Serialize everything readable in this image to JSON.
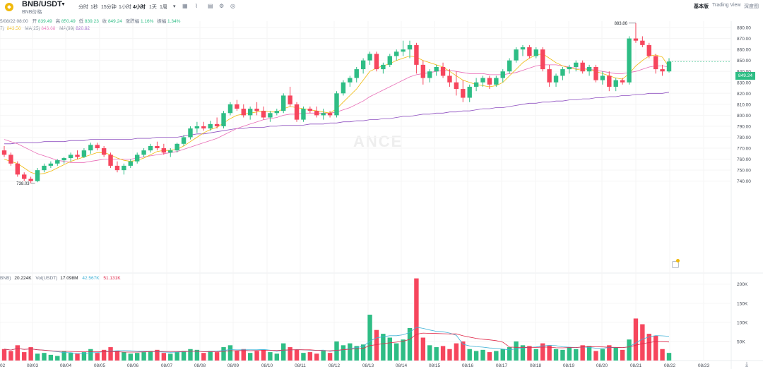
{
  "header": {
    "pair": "BNB/USDT",
    "sub_label": "BNB价格",
    "intervals": [
      "分时",
      "1秒",
      "15分钟",
      "1小时",
      "4小时",
      "1天",
      "1周"
    ],
    "active_interval": "4小时",
    "views": [
      "基本版",
      "Trading View",
      "深度图"
    ],
    "active_view": "基本版"
  },
  "ohlc_legend": {
    "date": "5/08/22 08:00",
    "open_label": "开",
    "open": "839.49",
    "high_label": "高",
    "high": "850.49",
    "low_label": "低",
    "low": "839.23",
    "close_label": "收",
    "close": "849.24",
    "change_label": "涨跌幅",
    "change": "1.16%",
    "amp_label": "振幅",
    "amp": "1.34%"
  },
  "ma_legend": {
    "prefix": "7)",
    "ma7_value": "843.56",
    "ma25_label": "MA(25)",
    "ma25_value": "843.68",
    "ma99_label": "MA(99)",
    "ma99_value": "820.82"
  },
  "vol_legend": {
    "prefix": "BNB)",
    "vol_bnb": "20.224K",
    "vol_usdt_label": "Vol(USDT)",
    "vol_usdt": "17.098M",
    "ma1": "42.567K",
    "ma2": "51.131K"
  },
  "watermark": "ANCE",
  "price_labels": {
    "current": "849.24",
    "high_marker": "883.86",
    "low_marker": "738.03"
  },
  "colors": {
    "up": "#2ebd85",
    "down": "#f6465d",
    "ma7": "#f0b90b",
    "ma25": "#e86ab5",
    "ma99": "#8e4fc0",
    "vol_ma1": "#3eb1d6",
    "vol_ma2": "#e0294a"
  },
  "chart_data": {
    "type": "candlestick",
    "price_axis_ticks": [
      880,
      870,
      860,
      850,
      840,
      830,
      820,
      810,
      800,
      790,
      780,
      770,
      760,
      750,
      740
    ],
    "volume_axis_ticks": [
      "200K",
      "150K",
      "100K",
      "50K"
    ],
    "x_ticks": [
      "02",
      "08/03",
      "08/04",
      "08/05",
      "08/06",
      "08/07",
      "08/08",
      "08/09",
      "08/10",
      "08/11",
      "08/12",
      "08/13",
      "08/14",
      "08/15",
      "08/16",
      "08/17",
      "08/18",
      "08/19",
      "08/20",
      "08/21",
      "08/22",
      "08/23"
    ],
    "candles": [
      [
        768,
        772,
        762,
        764
      ],
      [
        764,
        766,
        754,
        756
      ],
      [
        756,
        758,
        744,
        746
      ],
      [
        746,
        748,
        740,
        742
      ],
      [
        742,
        744,
        738,
        740
      ],
      [
        740,
        752,
        739,
        750
      ],
      [
        750,
        756,
        748,
        754
      ],
      [
        754,
        758,
        752,
        756
      ],
      [
        756,
        760,
        754,
        759
      ],
      [
        759,
        762,
        756,
        761
      ],
      [
        761,
        766,
        758,
        764
      ],
      [
        764,
        768,
        760,
        762
      ],
      [
        762,
        770,
        761,
        768
      ],
      [
        768,
        775,
        765,
        773
      ],
      [
        773,
        775,
        768,
        770
      ],
      [
        770,
        772,
        762,
        764
      ],
      [
        764,
        766,
        752,
        754
      ],
      [
        754,
        758,
        748,
        750
      ],
      [
        750,
        756,
        746,
        754
      ],
      [
        754,
        760,
        752,
        758
      ],
      [
        758,
        766,
        756,
        764
      ],
      [
        764,
        770,
        762,
        768
      ],
      [
        768,
        774,
        766,
        772
      ],
      [
        772,
        776,
        768,
        770
      ],
      [
        770,
        774,
        764,
        766
      ],
      [
        766,
        770,
        762,
        768
      ],
      [
        768,
        775,
        766,
        774
      ],
      [
        774,
        782,
        772,
        780
      ],
      [
        780,
        790,
        778,
        788
      ],
      [
        788,
        794,
        784,
        790
      ],
      [
        790,
        794,
        786,
        788
      ],
      [
        788,
        795,
        786,
        792
      ],
      [
        792,
        798,
        788,
        790
      ],
      [
        790,
        804,
        788,
        802
      ],
      [
        802,
        812,
        800,
        810
      ],
      [
        810,
        814,
        804,
        806
      ],
      [
        806,
        810,
        798,
        800
      ],
      [
        800,
        808,
        796,
        806
      ],
      [
        806,
        812,
        800,
        804
      ],
      [
        804,
        808,
        796,
        798
      ],
      [
        798,
        804,
        794,
        802
      ],
      [
        802,
        806,
        800,
        804
      ],
      [
        804,
        820,
        802,
        818
      ],
      [
        818,
        826,
        808,
        810
      ],
      [
        810,
        812,
        794,
        796
      ],
      [
        796,
        808,
        794,
        806
      ],
      [
        806,
        808,
        802,
        804
      ],
      [
        804,
        808,
        798,
        800
      ],
      [
        800,
        806,
        796,
        802
      ],
      [
        802,
        804,
        798,
        800
      ],
      [
        800,
        822,
        798,
        820
      ],
      [
        820,
        832,
        818,
        830
      ],
      [
        830,
        836,
        826,
        834
      ],
      [
        834,
        844,
        830,
        842
      ],
      [
        842,
        852,
        838,
        850
      ],
      [
        850,
        858,
        846,
        856
      ],
      [
        856,
        858,
        840,
        842
      ],
      [
        842,
        848,
        838,
        846
      ],
      [
        846,
        856,
        844,
        854
      ],
      [
        854,
        860,
        850,
        858
      ],
      [
        858,
        868,
        854,
        860
      ],
      [
        860,
        868,
        852,
        864
      ],
      [
        864,
        866,
        838,
        846
      ],
      [
        846,
        850,
        828,
        834
      ],
      [
        834,
        842,
        830,
        840
      ],
      [
        840,
        846,
        836,
        844
      ],
      [
        844,
        848,
        834,
        836
      ],
      [
        836,
        842,
        826,
        830
      ],
      [
        830,
        840,
        818,
        824
      ],
      [
        824,
        832,
        812,
        816
      ],
      [
        816,
        828,
        812,
        826
      ],
      [
        826,
        834,
        822,
        830
      ],
      [
        830,
        836,
        826,
        834
      ],
      [
        834,
        836,
        824,
        828
      ],
      [
        828,
        836,
        826,
        834
      ],
      [
        834,
        842,
        830,
        840
      ],
      [
        840,
        852,
        838,
        850
      ],
      [
        850,
        862,
        848,
        860
      ],
      [
        860,
        864,
        854,
        862
      ],
      [
        862,
        864,
        852,
        854
      ],
      [
        854,
        862,
        852,
        860
      ],
      [
        860,
        862,
        840,
        842
      ],
      [
        842,
        846,
        826,
        830
      ],
      [
        830,
        838,
        826,
        836
      ],
      [
        836,
        844,
        832,
        842
      ],
      [
        842,
        846,
        838,
        844
      ],
      [
        844,
        850,
        840,
        848
      ],
      [
        848,
        850,
        838,
        840
      ],
      [
        840,
        846,
        836,
        844
      ],
      [
        844,
        846,
        830,
        832
      ],
      [
        832,
        840,
        828,
        836
      ],
      [
        836,
        840,
        822,
        826
      ],
      [
        826,
        834,
        822,
        832
      ],
      [
        832,
        834,
        828,
        830
      ],
      [
        830,
        872,
        828,
        870
      ],
      [
        870,
        884,
        866,
        868
      ],
      [
        868,
        872,
        862,
        864
      ],
      [
        864,
        866,
        852,
        854
      ],
      [
        854,
        856,
        838,
        842
      ],
      [
        842,
        846,
        836,
        840
      ],
      [
        840,
        852,
        839,
        849
      ]
    ],
    "volumes": [
      30,
      25,
      40,
      22,
      35,
      18,
      20,
      15,
      12,
      25,
      20,
      18,
      22,
      30,
      20,
      28,
      35,
      25,
      22,
      18,
      20,
      22,
      25,
      28,
      20,
      18,
      22,
      25,
      30,
      28,
      20,
      25,
      22,
      35,
      40,
      25,
      30,
      20,
      25,
      28,
      22,
      18,
      45,
      35,
      28,
      20,
      22,
      18,
      25,
      20,
      50,
      40,
      45,
      38,
      42,
      120,
      80,
      70,
      60,
      45,
      55,
      85,
      215,
      60,
      40,
      35,
      38,
      30,
      45,
      50,
      30,
      25,
      28,
      22,
      25,
      30,
      35,
      50,
      40,
      38,
      30,
      45,
      40,
      30,
      28,
      35,
      30,
      40,
      38,
      25,
      30,
      40,
      35,
      28,
      55,
      110,
      95,
      70,
      65,
      30,
      20
    ],
    "ma7": [
      760,
      758,
      756,
      752,
      748,
      746,
      747,
      749,
      752,
      755,
      758,
      760,
      762,
      764,
      766,
      766,
      764,
      761,
      759,
      758,
      759,
      761,
      764,
      767,
      768,
      768,
      769,
      772,
      776,
      780,
      784,
      787,
      789,
      793,
      797,
      800,
      801,
      802,
      803,
      804,
      803,
      803,
      806,
      808,
      807,
      806,
      805,
      804,
      803,
      802,
      806,
      812,
      818,
      824,
      832,
      840,
      843,
      845,
      847,
      850,
      852,
      854,
      853,
      850,
      848,
      846,
      844,
      840,
      836,
      832,
      830,
      828,
      827,
      826,
      827,
      830,
      836,
      842,
      848,
      852,
      855,
      856,
      852,
      848,
      845,
      843,
      842,
      841,
      842,
      840,
      838,
      836,
      834,
      833,
      838,
      845,
      850,
      854,
      855,
      853,
      844
    ],
    "ma25": [
      778,
      776,
      774,
      771,
      768,
      765,
      763,
      761,
      759,
      758,
      757,
      757,
      757,
      758,
      759,
      760,
      760,
      760,
      760,
      760,
      761,
      762,
      763,
      764,
      765,
      766,
      767,
      769,
      771,
      773,
      775,
      777,
      779,
      782,
      785,
      788,
      790,
      792,
      794,
      796,
      797,
      798,
      800,
      801,
      801,
      802,
      802,
      802,
      802,
      802,
      803,
      805,
      807,
      810,
      813,
      817,
      820,
      823,
      826,
      829,
      832,
      835,
      837,
      838,
      839,
      840,
      841,
      841,
      840,
      839,
      838,
      838,
      838,
      837,
      837,
      837,
      838,
      839,
      841,
      843,
      845,
      846,
      846,
      846,
      845,
      844,
      843,
      843,
      842,
      841,
      840,
      839,
      838,
      838,
      839,
      840,
      842,
      844,
      845,
      845,
      844
    ],
    "ma99": [
      774,
      774,
      775,
      775,
      775,
      775,
      776,
      776,
      776,
      776,
      777,
      777,
      777,
      778,
      778,
      778,
      778,
      778,
      778,
      778,
      779,
      779,
      779,
      780,
      780,
      780,
      780,
      781,
      782,
      783,
      783,
      784,
      785,
      786,
      787,
      788,
      788,
      789,
      789,
      789,
      790,
      790,
      791,
      791,
      791,
      791,
      792,
      792,
      792,
      793,
      793,
      794,
      794,
      795,
      795,
      796,
      796,
      797,
      797,
      798,
      799,
      799,
      800,
      801,
      801,
      802,
      802,
      803,
      803,
      804,
      804,
      805,
      806,
      806,
      807,
      807,
      808,
      809,
      810,
      811,
      811,
      812,
      812,
      813,
      813,
      814,
      814,
      815,
      815,
      816,
      816,
      817,
      817,
      818,
      818,
      819,
      819,
      820,
      820,
      820,
      821
    ]
  }
}
